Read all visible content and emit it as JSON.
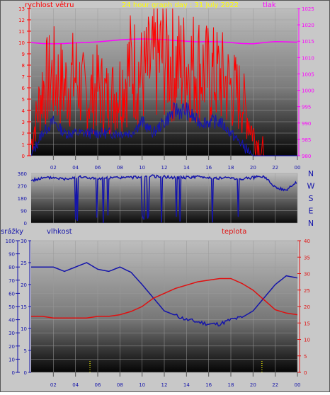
{
  "header": {
    "title": "24 hour graph day : 31 July 2022",
    "left_label": "rychlost větru",
    "right_label": "tlak"
  },
  "wind_dir_labels": [
    "N",
    "W",
    "S",
    "E",
    "N"
  ],
  "lower_header": {
    "precip_label": "srážky",
    "humidity_label": "vlhkost",
    "temp_label": "teplota"
  },
  "colors": {
    "bg": "#c8c8c8",
    "wind": "#ff0000",
    "wind_avg": "#1414b4",
    "pressure": "#ff00ff",
    "title": "#ffff00",
    "direction": "#1414aa",
    "humidity": "#1414aa",
    "temperature": "#e01010",
    "precip": "#ffff00"
  },
  "chart_data": [
    {
      "type": "line",
      "title": "24 hour graph day : 31 July 2022",
      "x_ticks": [
        "02",
        "04",
        "06",
        "08",
        "10",
        "12",
        "14",
        "16",
        "18",
        "20",
        "22",
        "00"
      ],
      "y_left_label": "rychlost větru",
      "y_left_ticks": [
        "0",
        "1",
        "2",
        "3",
        "4",
        "5",
        "6",
        "7",
        "8",
        "9",
        "10",
        "11",
        "12",
        "13"
      ],
      "ylim_left": [
        0,
        13
      ],
      "y_right_label": "tlak",
      "y_right_ticks": [
        "980",
        "985",
        "990",
        "995",
        "1000",
        "1005",
        "1010",
        "1015",
        "1020",
        "1025"
      ],
      "ylim_right": [
        980,
        1025
      ],
      "x_hours": [
        0,
        1,
        2,
        3,
        4,
        5,
        6,
        7,
        8,
        9,
        10,
        11,
        12,
        13,
        14,
        15,
        16,
        17,
        18,
        19,
        20,
        21,
        22,
        23,
        24
      ],
      "series": [
        {
          "key": "gust",
          "values": [
            1,
            6,
            7,
            6,
            7,
            5,
            6,
            5,
            6,
            8,
            7,
            8,
            9,
            8,
            8,
            8,
            7,
            7,
            6,
            5,
            2,
            0,
            0,
            0,
            0
          ]
        },
        {
          "key": "wind",
          "values": [
            0,
            2,
            3,
            2,
            2,
            2,
            2,
            2,
            2,
            2,
            3,
            2,
            3,
            4,
            4,
            3,
            3,
            3,
            2,
            1,
            0,
            0,
            0,
            0,
            0
          ]
        },
        {
          "key": "pressure",
          "values": [
            1014.6,
            1014.3,
            1014.2,
            1014.3,
            1014.5,
            1014.6,
            1014.8,
            1015.1,
            1015.4,
            1015.6,
            1015.7,
            1015.6,
            1015.5,
            1015.2,
            1015.0,
            1014.8,
            1014.9,
            1014.8,
            1014.6,
            1014.3,
            1014.2,
            1014.6,
            1014.9,
            1014.8,
            1014.7
          ]
        }
      ]
    },
    {
      "type": "line",
      "y_ticks": [
        "0",
        "90",
        "180",
        "270",
        "360"
      ],
      "ylim": [
        0,
        360
      ],
      "x_hours": [
        0,
        1,
        2,
        3,
        4,
        5,
        6,
        7,
        8,
        9,
        10,
        11,
        12,
        13,
        14,
        15,
        16,
        17,
        18,
        19,
        20,
        21,
        22,
        23,
        24
      ],
      "series": [
        {
          "key": "direction",
          "values": [
            310,
            325,
            330,
            320,
            335,
            330,
            320,
            325,
            330,
            330,
            335,
            340,
            335,
            330,
            330,
            335,
            330,
            325,
            330,
            320,
            330,
            340,
            260,
            240,
            300
          ]
        }
      ]
    },
    {
      "type": "line",
      "x_ticks": [
        "02",
        "04",
        "06",
        "08",
        "10",
        "12",
        "14",
        "16",
        "18",
        "20",
        "22",
        "00"
      ],
      "y_precip_ticks": [
        "0",
        "10",
        "20",
        "30",
        "40",
        "50",
        "60",
        "70",
        "80",
        "90",
        "100"
      ],
      "ylim_precip": [
        0,
        100
      ],
      "y_humidity_ticks": [
        "0",
        "5",
        "10",
        "15",
        "20",
        "25",
        "30"
      ],
      "ylim_humidity": [
        0,
        30
      ],
      "y_temp_ticks": [
        "0",
        "5",
        "10",
        "15",
        "20",
        "25",
        "30",
        "35",
        "40"
      ],
      "ylim_temp": [
        0,
        40
      ],
      "x_hours": [
        0,
        1,
        2,
        3,
        4,
        5,
        6,
        7,
        8,
        9,
        10,
        11,
        12,
        13,
        14,
        15,
        16,
        17,
        18,
        19,
        20,
        21,
        22,
        23,
        24
      ],
      "series": [
        {
          "key": "humidity",
          "values": [
            24,
            24,
            24,
            23,
            24,
            25,
            23.5,
            23,
            24,
            22.8,
            20,
            17,
            14,
            13,
            12,
            11.5,
            11,
            11,
            12,
            12.5,
            14,
            17,
            20,
            22,
            21.5
          ]
        },
        {
          "key": "temperature",
          "values": [
            17,
            17,
            16.5,
            16.5,
            16.5,
            16.5,
            17,
            17,
            17.5,
            18.5,
            20,
            22.5,
            24,
            25.5,
            26.5,
            27.5,
            28,
            28.5,
            28.5,
            27,
            25,
            22,
            19,
            18,
            17.5
          ]
        },
        {
          "key": "precip",
          "values": [
            0,
            0,
            0,
            0,
            0,
            0,
            0,
            0,
            0,
            0,
            0,
            0,
            0,
            0,
            0,
            0,
            0,
            0,
            0,
            0,
            0,
            0,
            0,
            0,
            0
          ]
        }
      ]
    }
  ]
}
